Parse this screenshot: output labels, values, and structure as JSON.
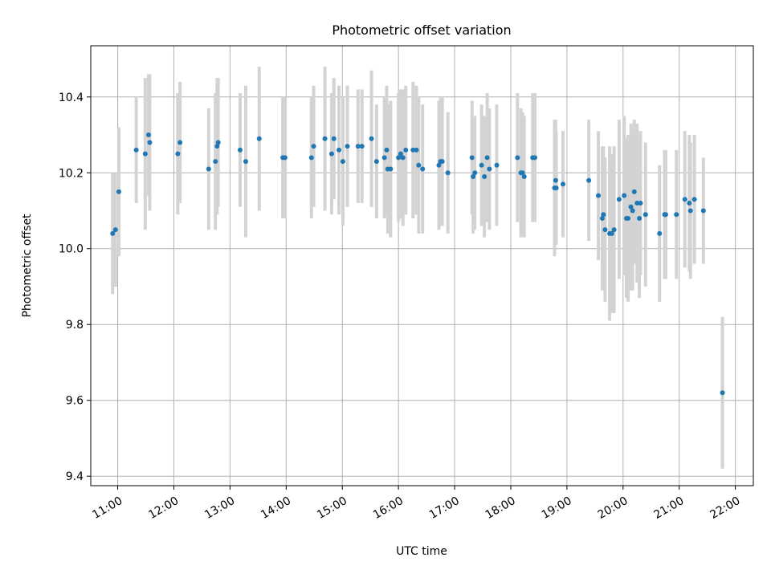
{
  "chart_data": {
    "type": "scatter",
    "title": "Photometric offset variation",
    "xlabel": "UTC time",
    "ylabel": "Photometric offset",
    "x_unit": "hours (UTC)",
    "xlim": [
      10.52,
      22.32
    ],
    "ylim": [
      9.375,
      10.535
    ],
    "x_ticks": [
      {
        "value": 11,
        "label": "11:00"
      },
      {
        "value": 12,
        "label": "12:00"
      },
      {
        "value": 13,
        "label": "13:00"
      },
      {
        "value": 14,
        "label": "14:00"
      },
      {
        "value": 15,
        "label": "15:00"
      },
      {
        "value": 16,
        "label": "16:00"
      },
      {
        "value": 17,
        "label": "17:00"
      },
      {
        "value": 18,
        "label": "18:00"
      },
      {
        "value": 19,
        "label": "19:00"
      },
      {
        "value": 20,
        "label": "20:00"
      },
      {
        "value": 21,
        "label": "21:00"
      },
      {
        "value": 22,
        "label": "22:00"
      }
    ],
    "y_ticks": [
      {
        "value": 9.4,
        "label": "9.4"
      },
      {
        "value": 9.6,
        "label": "9.6"
      },
      {
        "value": 9.8,
        "label": "9.8"
      },
      {
        "value": 10.0,
        "label": "10.0"
      },
      {
        "value": 10.2,
        "label": "10.2"
      },
      {
        "value": 10.4,
        "label": "10.4"
      }
    ],
    "grid": true,
    "colors": {
      "marker": "#1f77b4",
      "errorbar": "#d3d3d3",
      "grid": "#b0b0b0"
    },
    "series": [
      {
        "x": [
          10.91,
          10.96,
          11.02,
          11.33,
          11.49,
          11.55,
          11.57,
          12.07,
          12.11,
          12.62,
          12.74,
          12.77,
          12.79,
          13.18,
          13.28,
          13.52,
          13.94,
          13.98,
          14.45,
          14.49,
          14.69,
          14.81,
          14.85,
          14.94,
          15.01,
          15.09,
          15.28,
          15.35,
          15.52,
          15.61,
          15.75,
          15.79,
          15.81,
          15.86,
          16.0,
          16.04,
          16.08,
          16.13,
          16.26,
          16.32,
          16.36,
          16.43,
          16.72,
          16.75,
          16.78,
          16.88,
          17.31,
          17.33,
          17.36,
          17.48,
          17.53,
          17.58,
          17.62,
          17.75,
          18.12,
          18.18,
          18.21,
          18.24,
          18.39,
          18.43,
          18.78,
          18.8,
          18.81,
          18.93,
          19.39,
          19.56,
          19.63,
          19.65,
          19.68,
          19.76,
          19.8,
          19.84,
          19.93,
          20.02,
          20.06,
          20.09,
          20.14,
          20.17,
          20.2,
          20.25,
          20.29,
          20.31,
          20.4,
          20.65,
          20.74,
          20.76,
          20.95,
          21.1,
          21.18,
          21.2,
          21.27,
          21.43,
          21.77
        ],
        "y": [
          10.04,
          10.05,
          10.15,
          10.26,
          10.25,
          10.3,
          10.28,
          10.25,
          10.28,
          10.21,
          10.23,
          10.27,
          10.28,
          10.26,
          10.23,
          10.29,
          10.24,
          10.24,
          10.24,
          10.27,
          10.29,
          10.25,
          10.29,
          10.26,
          10.23,
          10.27,
          10.27,
          10.27,
          10.29,
          10.23,
          10.24,
          10.26,
          10.21,
          10.21,
          10.24,
          10.25,
          10.24,
          10.26,
          10.26,
          10.26,
          10.22,
          10.21,
          10.22,
          10.23,
          10.23,
          10.2,
          10.24,
          10.19,
          10.2,
          10.22,
          10.19,
          10.24,
          10.21,
          10.22,
          10.24,
          10.2,
          10.2,
          10.19,
          10.24,
          10.24,
          10.16,
          10.18,
          10.16,
          10.17,
          10.18,
          10.14,
          10.08,
          10.09,
          10.05,
          10.04,
          10.04,
          10.05,
          10.13,
          10.14,
          10.08,
          10.08,
          10.11,
          10.1,
          10.15,
          10.12,
          10.08,
          10.12,
          10.09,
          10.04,
          10.09,
          10.09,
          10.09,
          10.13,
          10.12,
          10.1,
          10.13,
          10.1,
          9.62
        ],
        "err": [
          0.16,
          0.15,
          0.17,
          0.14,
          0.2,
          0.16,
          0.18,
          0.16,
          0.16,
          0.16,
          0.18,
          0.18,
          0.17,
          0.15,
          0.2,
          0.19,
          0.16,
          0.16,
          0.16,
          0.16,
          0.19,
          0.16,
          0.16,
          0.17,
          0.17,
          0.16,
          0.15,
          0.15,
          0.18,
          0.15,
          0.16,
          0.17,
          0.17,
          0.18,
          0.17,
          0.17,
          0.18,
          0.17,
          0.18,
          0.17,
          0.18,
          0.17,
          0.17,
          0.17,
          0.17,
          0.16,
          0.15,
          0.15,
          0.15,
          0.16,
          0.16,
          0.17,
          0.16,
          0.16,
          0.17,
          0.17,
          0.16,
          0.16,
          0.17,
          0.17,
          0.18,
          0.16,
          0.15,
          0.14,
          0.16,
          0.17,
          0.19,
          0.18,
          0.19,
          0.23,
          0.21,
          0.22,
          0.21,
          0.21,
          0.21,
          0.22,
          0.22,
          0.21,
          0.19,
          0.21,
          0.21,
          0.19,
          0.19,
          0.18,
          0.17,
          0.17,
          0.17,
          0.18,
          0.18,
          0.18,
          0.17,
          0.14,
          0.2
        ]
      }
    ]
  }
}
